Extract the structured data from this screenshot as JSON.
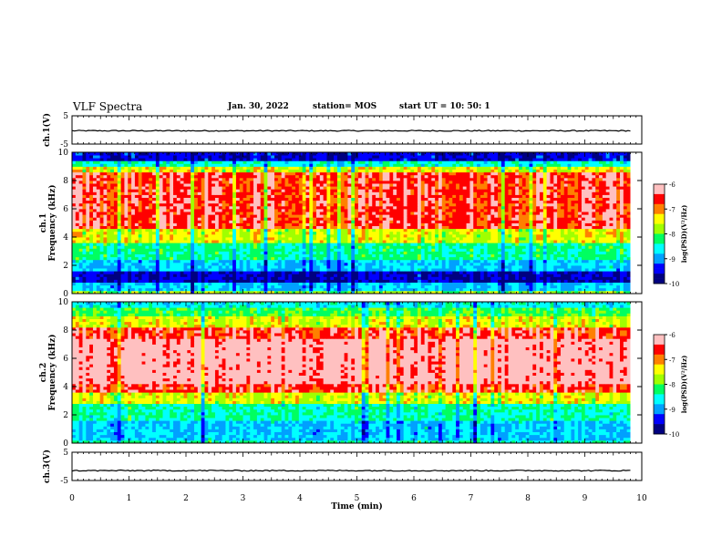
{
  "header": {
    "title": "VLF Spectra",
    "date": "Jan. 30, 2022",
    "station": "station= MOS",
    "start": "start  UT =   10: 50: 1"
  },
  "chart_data": [
    {
      "type": "line",
      "panel": "ch1-waveform",
      "ylabel": "ch.1(V)",
      "ylim": [
        -5,
        5
      ],
      "yticks": [
        "5",
        "-5"
      ],
      "xlim": [
        0,
        9.8
      ],
      "trace_level": -0.3
    },
    {
      "type": "heatmap",
      "panel": "ch1-spectrogram",
      "ylabel": "ch.1\nFrequency (kHz)",
      "ylabel_line1": "ch.1",
      "ylabel_line2": "Frequency (kHz)",
      "ylim": [
        0,
        10
      ],
      "yticks": [
        "0",
        "2",
        "4",
        "6",
        "8",
        "10"
      ],
      "xlim": [
        0,
        9.8
      ],
      "bands": [
        {
          "f0": 0.0,
          "f1": 0.3,
          "level": 0.55
        },
        {
          "f0": 0.3,
          "f1": 0.8,
          "level": 0.3
        },
        {
          "f0": 0.8,
          "f1": 1.6,
          "level": 0.1
        },
        {
          "f0": 1.6,
          "f1": 2.4,
          "level": 0.3
        },
        {
          "f0": 2.4,
          "f1": 3.6,
          "level": 0.42
        },
        {
          "f0": 3.6,
          "f1": 4.6,
          "level": 0.62
        },
        {
          "f0": 4.6,
          "f1": 8.6,
          "level": 0.86
        },
        {
          "f0": 8.6,
          "f1": 9.0,
          "level": 0.62
        },
        {
          "f0": 9.0,
          "f1": 9.4,
          "level": 0.38
        },
        {
          "f0": 9.4,
          "f1": 10.0,
          "level": 0.12
        }
      ],
      "colorbar": {
        "label": "log(PSD)(V²/Hz)",
        "ticks": [
          "-6",
          "-7",
          "-8",
          "-9",
          "-10"
        ],
        "range": [
          -10,
          -6
        ]
      }
    },
    {
      "type": "heatmap",
      "panel": "ch2-spectrogram",
      "ylabel": "ch.2\nFrequency (kHz)",
      "ylabel_line1": "ch.2",
      "ylabel_line2": "Frequency (kHz)",
      "ylim": [
        0,
        10
      ],
      "yticks": [
        "0",
        "2",
        "4",
        "6",
        "8",
        "10"
      ],
      "xlim": [
        0,
        9.8
      ],
      "bands": [
        {
          "f0": 0.0,
          "f1": 0.3,
          "level": 0.4
        },
        {
          "f0": 0.3,
          "f1": 1.6,
          "level": 0.3
        },
        {
          "f0": 1.6,
          "f1": 2.8,
          "level": 0.4
        },
        {
          "f0": 2.8,
          "f1": 3.6,
          "level": 0.62
        },
        {
          "f0": 3.6,
          "f1": 4.2,
          "level": 0.86
        },
        {
          "f0": 4.2,
          "f1": 7.4,
          "level": 0.97
        },
        {
          "f0": 7.4,
          "f1": 8.2,
          "level": 0.86
        },
        {
          "f0": 8.2,
          "f1": 9.0,
          "level": 0.62
        },
        {
          "f0": 9.0,
          "f1": 9.6,
          "level": 0.48
        },
        {
          "f0": 9.6,
          "f1": 10.0,
          "level": 0.35
        }
      ],
      "colorbar": {
        "label": "log(PSD)(V²/Hz)",
        "ticks": [
          "-6",
          "-7",
          "-8",
          "-9",
          "-10"
        ],
        "range": [
          -10,
          -6
        ]
      }
    },
    {
      "type": "line",
      "panel": "ch3-waveform",
      "ylabel": "ch.3(V)",
      "ylim": [
        -5,
        5
      ],
      "yticks": [
        "5",
        "-5"
      ],
      "xlim": [
        0,
        9.8
      ],
      "trace_level": -1.5
    }
  ],
  "xaxis": {
    "label": "Time (min)",
    "range": [
      0,
      10
    ],
    "ticks": [
      "0",
      "1",
      "2",
      "3",
      "4",
      "5",
      "6",
      "7",
      "8",
      "9",
      "10"
    ]
  },
  "colors": {
    "scale": [
      "#000080",
      "#0000ff",
      "#00a0ff",
      "#00ffff",
      "#00ff60",
      "#a0ff00",
      "#ffff00",
      "#ff8000",
      "#ff0000",
      "#ffc0c0"
    ]
  }
}
